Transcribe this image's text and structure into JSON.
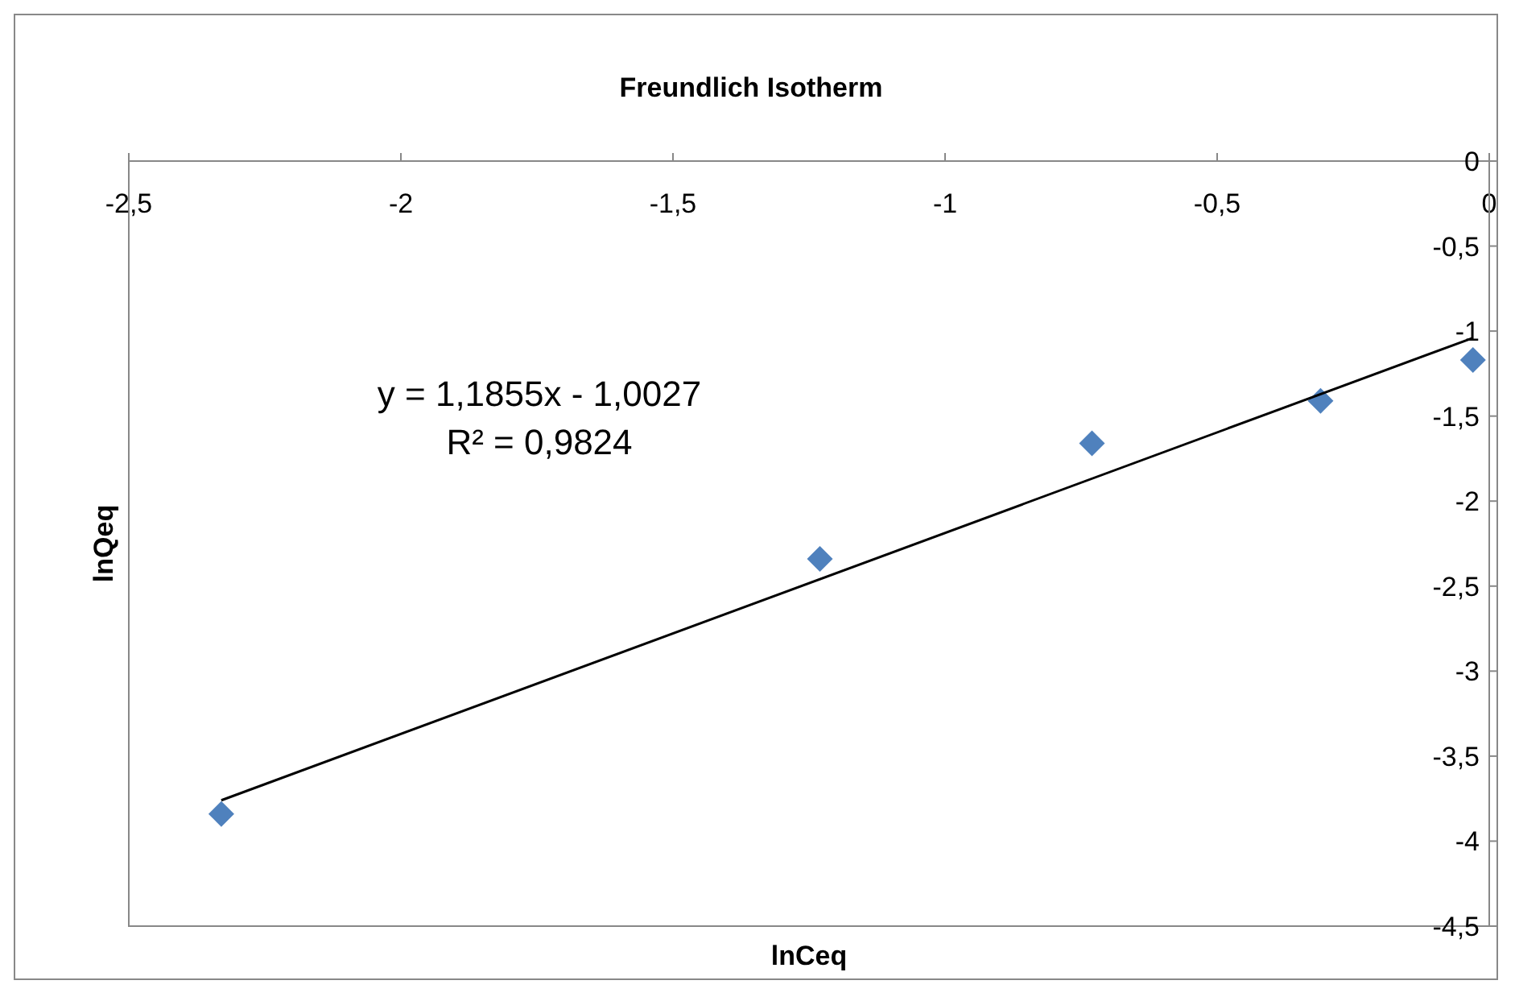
{
  "chart_data": {
    "type": "scatter",
    "title": "Freundlich Isotherm",
    "xlabel": "lnCeq",
    "ylabel": "lnQeq",
    "xlim": [
      -2.5,
      0
    ],
    "ylim": [
      -4.5,
      0
    ],
    "xticks": [
      {
        "value": -2.5,
        "label": "-2,5"
      },
      {
        "value": -2,
        "label": "-2"
      },
      {
        "value": -1.5,
        "label": "-1,5"
      },
      {
        "value": -1,
        "label": "-1"
      },
      {
        "value": -0.5,
        "label": "-0,5"
      },
      0
    ],
    "yticks": [
      0,
      {
        "value": -0.5,
        "label": "-0,5"
      },
      {
        "value": -1,
        "label": "-1"
      },
      {
        "value": -1.5,
        "label": "-1,5"
      },
      {
        "value": -2,
        "label": "-2"
      },
      {
        "value": -2.5,
        "label": "-2,5"
      },
      {
        "value": -3,
        "label": "-3"
      },
      {
        "value": -3.5,
        "label": "-3,5"
      },
      {
        "value": -4,
        "label": "-4"
      },
      {
        "value": -4.5,
        "label": "-4,5"
      }
    ],
    "grid": false,
    "marker": "diamond",
    "annotations": [
      "y = 1,1855x - 1,0027",
      "R² = 0,9824"
    ],
    "series": [
      {
        "type": "scatter",
        "color": "#4f81bd",
        "x": [
          -2.33,
          -1.23,
          -0.73,
          -0.31,
          -0.03
        ],
        "values": [
          -3.84,
          -2.34,
          -1.66,
          -1.41,
          -1.17
        ]
      },
      {
        "type": "line",
        "color": "#000000",
        "line_style": "solid",
        "marker": "none",
        "x": [
          -2.33,
          -0.03
        ],
        "values": [
          -3.76,
          -1.04
        ]
      }
    ]
  }
}
